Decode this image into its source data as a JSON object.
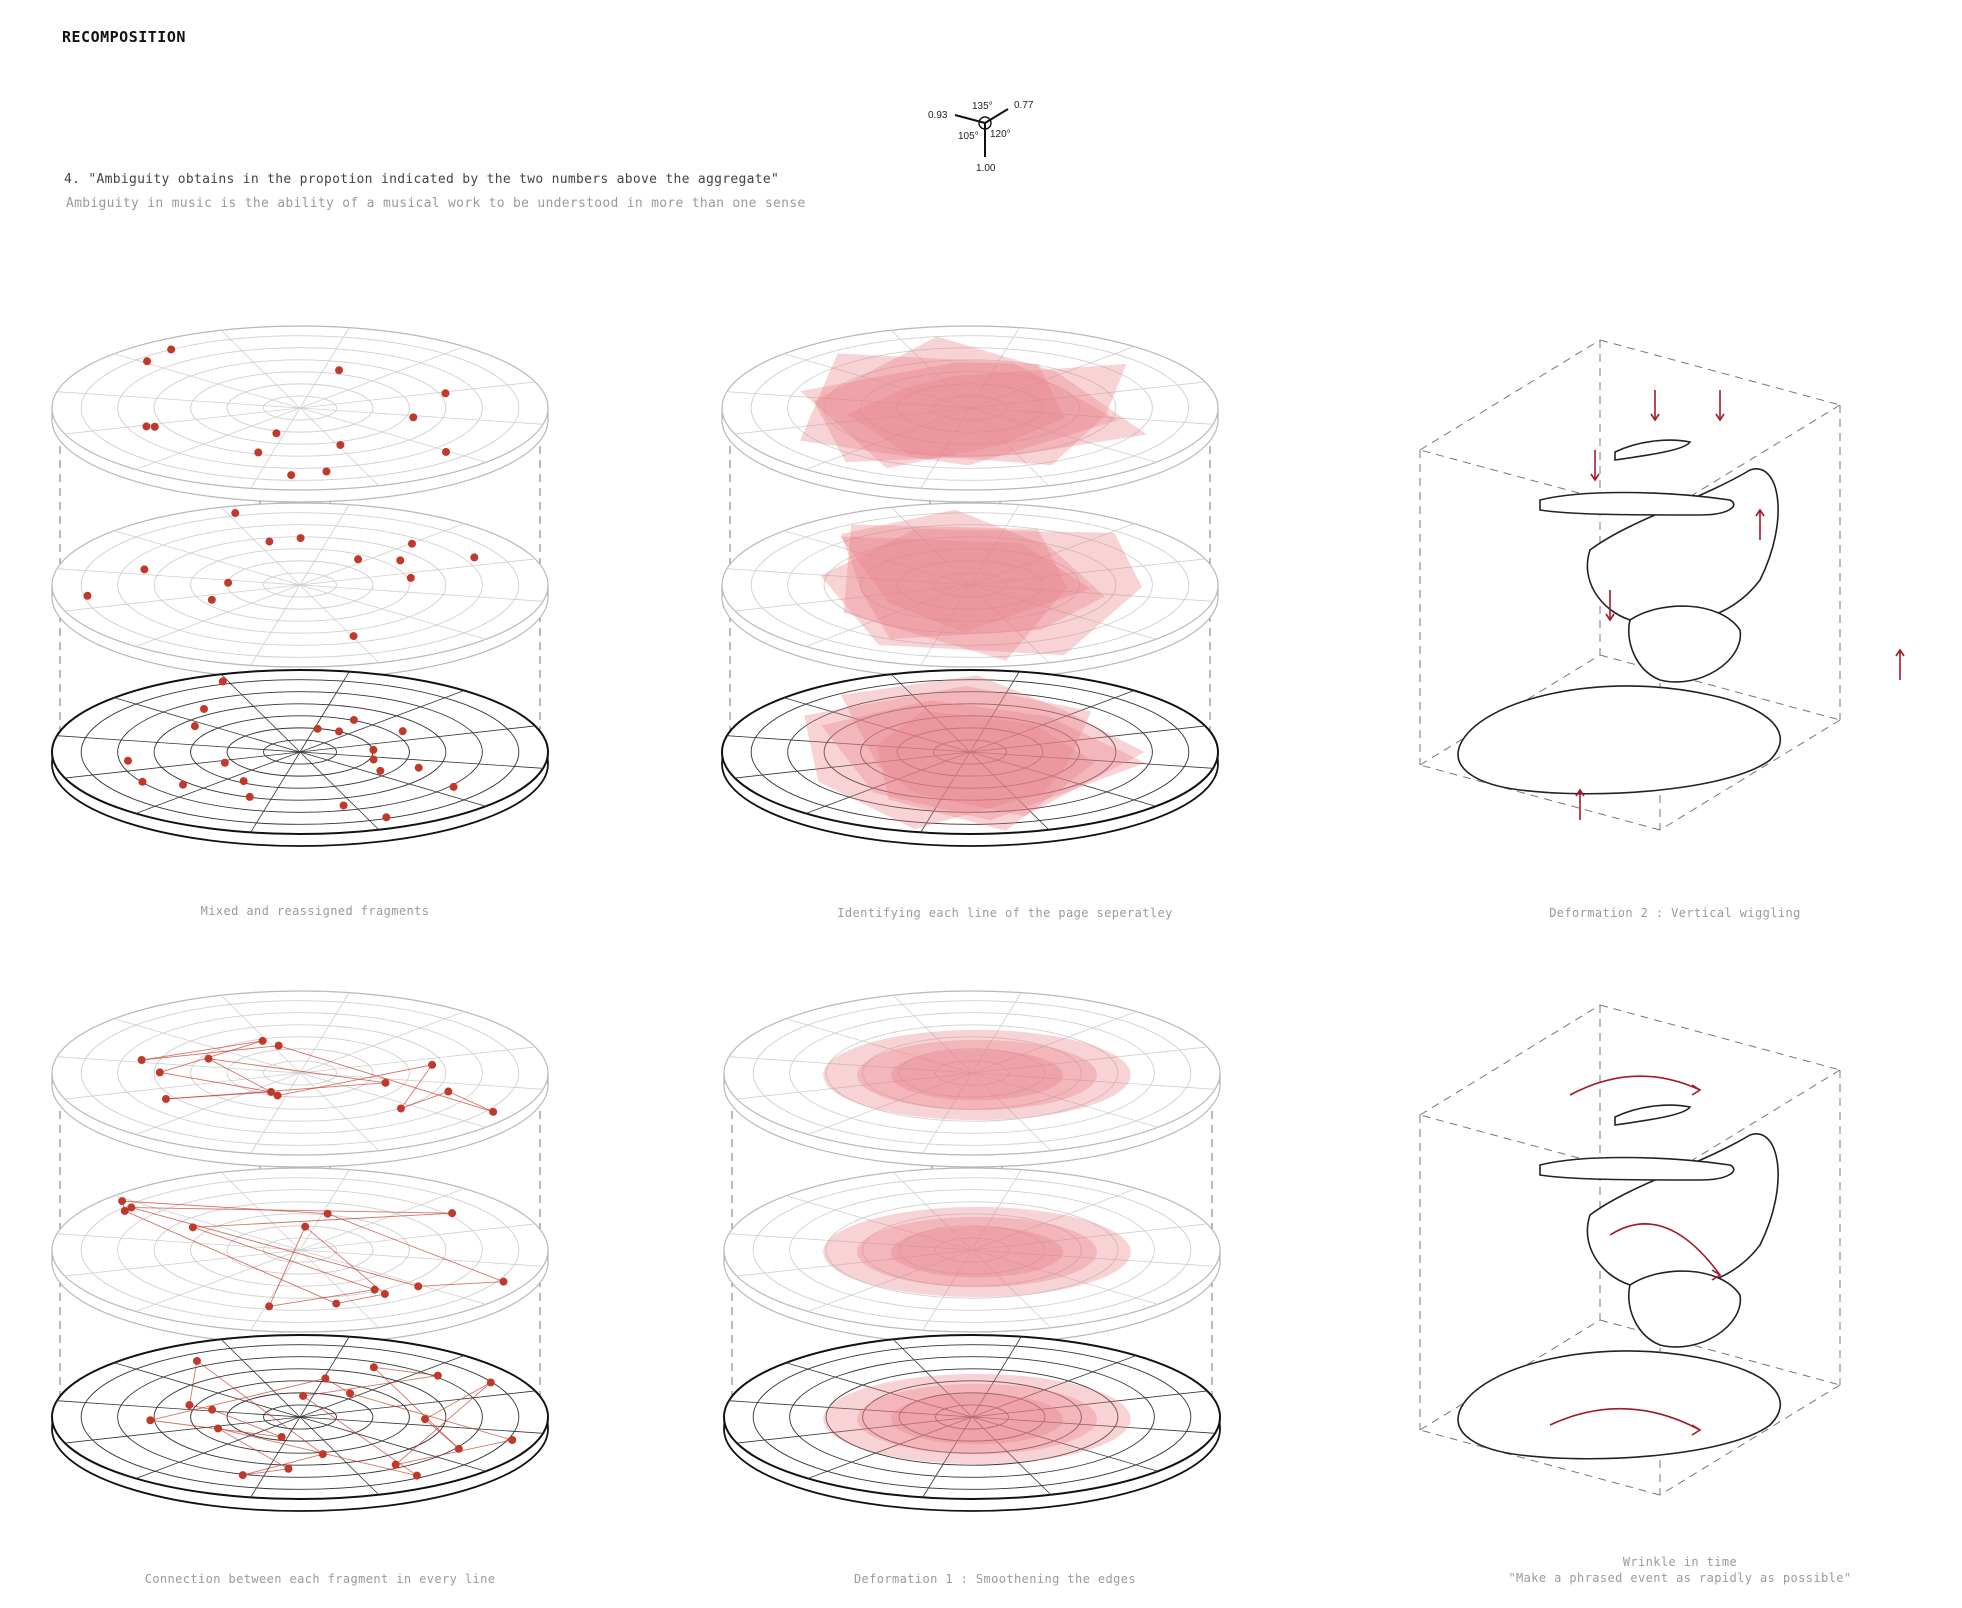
{
  "title": "RECOMPOSITION",
  "heading": "4. \"Ambiguity obtains in the propotion indicated by the two numbers above the aggregate\"",
  "subheading": "Ambiguity in music is the ability of a musical work to be understood in more than one sense",
  "legend": {
    "top_angle": "135°",
    "left_value": "0.93",
    "right_value": "0.77",
    "left_angle": "105°",
    "right_angle": "120°",
    "bottom_value": "1.00"
  },
  "captions": {
    "p1": "Mixed and reassigned fragments",
    "p2": "Identifying each line of the page seperatley",
    "p3": "Deformation 2 : Vertical wiggling",
    "p4": "Connection between each fragment in every line",
    "p5": "Deformation 1 : Smoothening the edges",
    "p6_line1": "Wrinkle in time",
    "p6_line2": "\"Make a phrased event as rapidly as possible\""
  },
  "colors": {
    "accent": "#c0392b",
    "fill": "#e8808a",
    "arrow": "#a3192b",
    "grid": "#bbbbbb",
    "ink": "#222222"
  }
}
